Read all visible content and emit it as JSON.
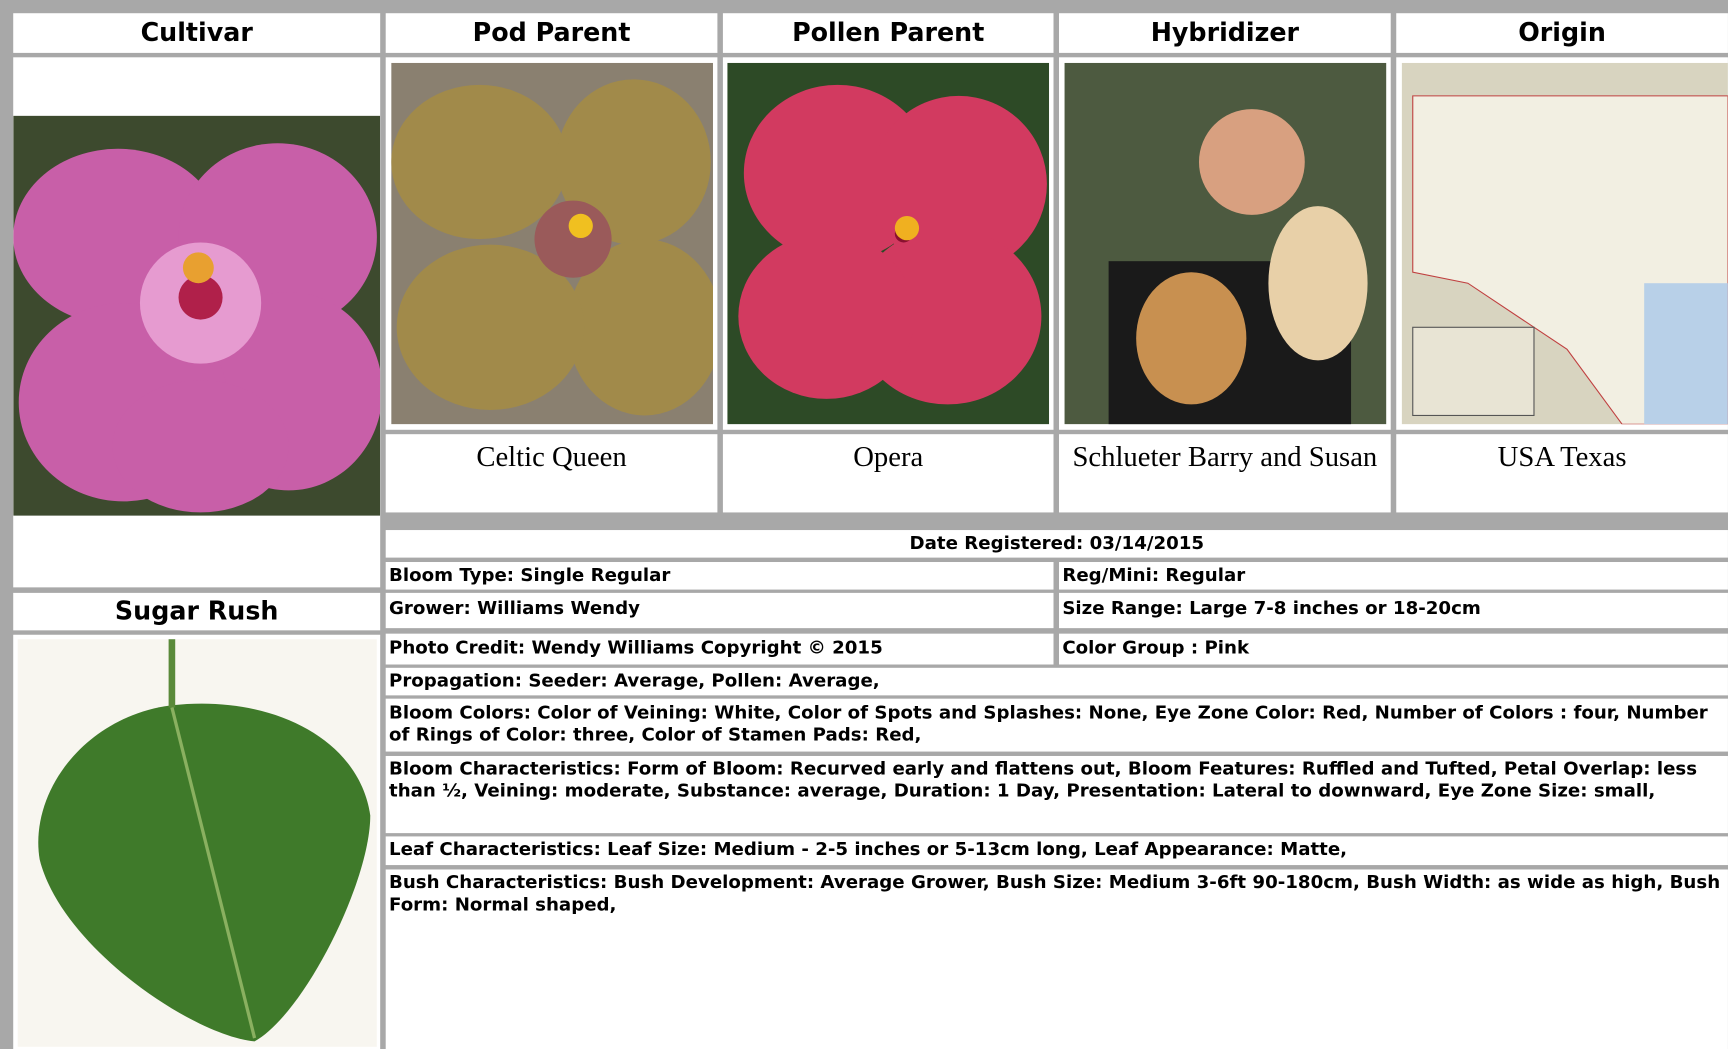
{
  "columns": [
    "Cultivar",
    "Pod Parent",
    "Pollen Parent",
    "Hybridizer",
    "Origin"
  ],
  "cultivar": {
    "name": "Sugar Rush"
  },
  "captions": [
    "Celtic Queen",
    "Opera",
    "Schlueter Barry and Susan",
    "USA Texas"
  ],
  "details": {
    "date_registered": "Date Registered:  03/14/2015",
    "bloom_type": "Bloom Type: Single Regular",
    "reg_mini": "Reg/Mini: Regular",
    "grower": "Grower: Williams Wendy",
    "size_range": "Size Range: Large 7-8 inches or 18-20cm",
    "photo_credit": "Photo Credit: Wendy Williams Copyright © 2015",
    "color_group": "Color Group : Pink",
    "propagation": "Propagation: Seeder: Average, Pollen: Average,",
    "bloom_colors": "Bloom Colors: Color of Veining: White, Color of Spots and Splashes: None, Eye Zone Color: Red, Number of Colors : four, Number of Rings of Color: three, Color of Stamen Pads: Red,",
    "bloom_characteristics": "Bloom Characteristics: Form of Bloom: Recurved early and flattens out, Bloom Features: Ruffled and Tufted, Petal Overlap: less than ½, Veining: moderate, Substance: average, Duration: 1 Day, Presentation: Lateral to downward, Eye Zone Size: small,",
    "leaf_characteristics": "Leaf Characteristics: Leaf Size: Medium - 2-5 inches or 5-13cm long, Leaf Appearance: Matte,",
    "bush_characteristics": "Bush Characteristics: Bush Development: Average Grower, Bush Size: Medium 3-6ft 90-180cm, Bush Width: as wide as high, Bush Form: Normal shaped,"
  }
}
